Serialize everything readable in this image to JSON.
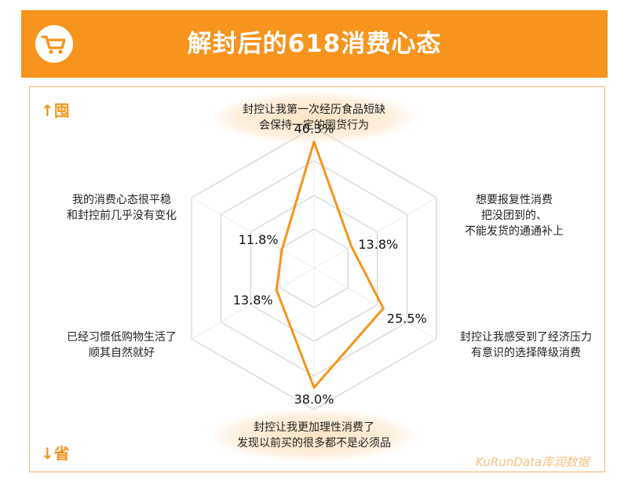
{
  "header": {
    "title": "解封后的618消费心态",
    "icon": "shopping-cart-icon"
  },
  "axis_tags": {
    "top": "↑囤",
    "bottom": "↓省"
  },
  "watermark": "KuRunData库润数据",
  "colors": {
    "accent": "#f7941d",
    "panel_border": "#f7b46a",
    "grid": "#c9c9c9",
    "label_glow": "#fde3c4"
  },
  "chart_data": {
    "type": "radar",
    "title": "解封后的618消费心态",
    "axes": [
      {
        "label_lines": [
          "封控让我第一次经历食品短缺",
          "会保持一定的囤货行为"
        ],
        "value": 40.3,
        "value_label": "40.3%"
      },
      {
        "label_lines": [
          "想要报复性消费",
          "把没团到的、",
          "不能发货的通通补上"
        ],
        "value": 13.8,
        "value_label": "13.8%"
      },
      {
        "label_lines": [
          "封控让我感受到了经济压力",
          "有意识的选择降级消费"
        ],
        "value": 25.5,
        "value_label": "25.5%"
      },
      {
        "label_lines": [
          "封控让我更加理性消费了",
          "发现以前买的很多都不是必须品"
        ],
        "value": 38.0,
        "value_label": "38.0%"
      },
      {
        "label_lines": [
          "已经习惯低购物生活了",
          "顺其自然就好"
        ],
        "value": 13.8,
        "value_label": "13.8%"
      },
      {
        "label_lines": [
          "我的消费心态很平稳",
          "和封控前几乎没有变化"
        ],
        "value": 11.8,
        "value_label": "11.8%"
      }
    ],
    "rings": 4,
    "grid": true
  }
}
